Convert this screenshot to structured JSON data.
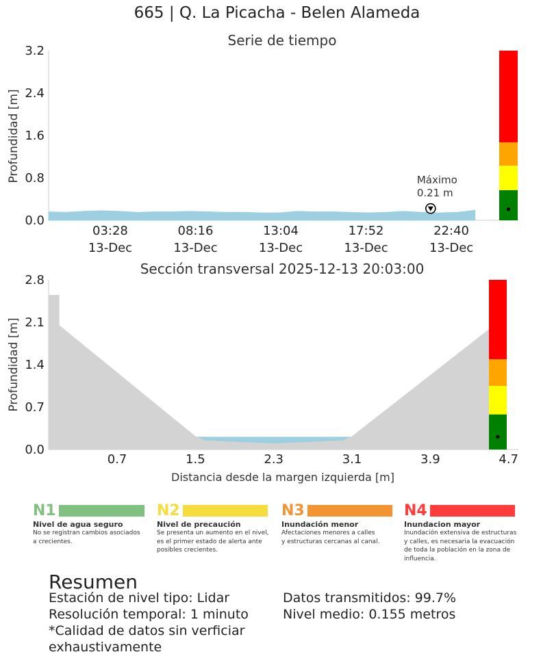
{
  "suptitle": "665 | Q. La Picacha - Belen Alameda",
  "colors": {
    "water": "#9ecfe0",
    "ground": "#d3d3d3",
    "green": "#008000",
    "yellow": "#ffff00",
    "orange": "#ffa500",
    "red": "#ff0000"
  },
  "chart_data": [
    {
      "type": "area",
      "title": "Serie de tiempo",
      "ylabel": "Profundidad [m]",
      "ylim": [
        0,
        3.2
      ],
      "yticks": [
        "0.0",
        "0.8",
        "1.6",
        "2.4",
        "3.2"
      ],
      "xticks": [
        {
          "time": "03:28",
          "date": "13-Dec"
        },
        {
          "time": "08:16",
          "date": "13-Dec"
        },
        {
          "time": "13:04",
          "date": "13-Dec"
        },
        {
          "time": "17:52",
          "date": "13-Dec"
        },
        {
          "time": "22:40",
          "date": "13-Dec"
        }
      ],
      "x_range_minutes": [
        0,
        1450
      ],
      "x_tick_minutes": [
        208,
        496,
        784,
        1072,
        1360
      ],
      "series_x_minutes": [
        0,
        60,
        120,
        180,
        240,
        300,
        360,
        420,
        480,
        540,
        600,
        660,
        720,
        780,
        840,
        900,
        960,
        1020,
        1080,
        1140,
        1200,
        1260,
        1320,
        1380,
        1440
      ],
      "series_depth": [
        0.16,
        0.15,
        0.17,
        0.18,
        0.17,
        0.15,
        0.16,
        0.16,
        0.17,
        0.16,
        0.15,
        0.15,
        0.14,
        0.14,
        0.17,
        0.16,
        0.16,
        0.15,
        0.14,
        0.15,
        0.17,
        0.15,
        0.14,
        0.15,
        0.19
      ],
      "max_annotation": {
        "label": "Máximo",
        "value_text": "0.21 m",
        "x_minutes": 1290,
        "y": 0.21
      },
      "level_bar": {
        "thresholds": [
          0,
          0.57,
          1.03,
          1.47,
          3.2
        ],
        "current": 0.21
      }
    },
    {
      "type": "area",
      "title": "Sección transversal 2025-12-13 20:03:00",
      "xlabel": "Distancia desde la margen izquierda [m]",
      "ylabel": "Profundidad [m]",
      "ylim": [
        0,
        2.8
      ],
      "xlim": [
        0,
        4.8
      ],
      "yticks": [
        "0.0",
        "0.7",
        "1.4",
        "2.1",
        "2.8"
      ],
      "xticks": [
        "0.7",
        "1.5",
        "2.3",
        "3.1",
        "3.9",
        "4.7"
      ],
      "xtick_values": [
        0.7,
        1.5,
        2.3,
        3.1,
        3.9,
        4.7
      ],
      "ground_profile": [
        [
          0,
          2.55
        ],
        [
          0.11,
          2.55
        ],
        [
          0.11,
          2.05
        ],
        [
          1.5,
          0.22
        ],
        [
          1.6,
          0.15
        ],
        [
          2.3,
          0.1
        ],
        [
          3.0,
          0.15
        ],
        [
          3.1,
          0.22
        ],
        [
          4.55,
          2.05
        ],
        [
          4.55,
          2.55
        ],
        [
          4.66,
          2.55
        ],
        [
          4.66,
          0
        ]
      ],
      "water_level": 0.21,
      "level_bar": {
        "thresholds": [
          0,
          0.58,
          1.05,
          1.49,
          2.8
        ],
        "current": 0.21
      }
    }
  ],
  "levels": [
    {
      "code": "N1",
      "color": "#80c080",
      "name": "Nivel de agua seguro",
      "desc": [
        "No se registran cambios asociados",
        "a crecientes."
      ]
    },
    {
      "code": "N2",
      "color": "#f7dc3e",
      "name": "Nivel de precaución",
      "desc": [
        "Se presenta un aumento en el nivel,",
        "es el primer estado de alerta ante",
        "posibles crecientes."
      ]
    },
    {
      "code": "N3",
      "color": "#f39433",
      "name": "Inundación menor",
      "desc": [
        "Afectaciones menores a calles",
        "y estructuras cercanas al canal."
      ]
    },
    {
      "code": "N4",
      "color": "#ff3b3b",
      "name": "Inundacion mayor",
      "desc": [
        "Inundación extensiva de estructuras",
        "y calles, es necesaria la evacuación",
        "de toda la población en la zona de",
        "influencia."
      ]
    }
  ],
  "summary": {
    "title": "Resumen",
    "left": [
      "Estación de nivel tipo: Lidar",
      "Resolución temporal: 1 minuto",
      "*Calidad de datos sin verficiar",
      "exhaustivamente"
    ],
    "right": [
      "Datos transmitidos: 99.7%",
      "Nivel medio: 0.155 metros"
    ]
  }
}
